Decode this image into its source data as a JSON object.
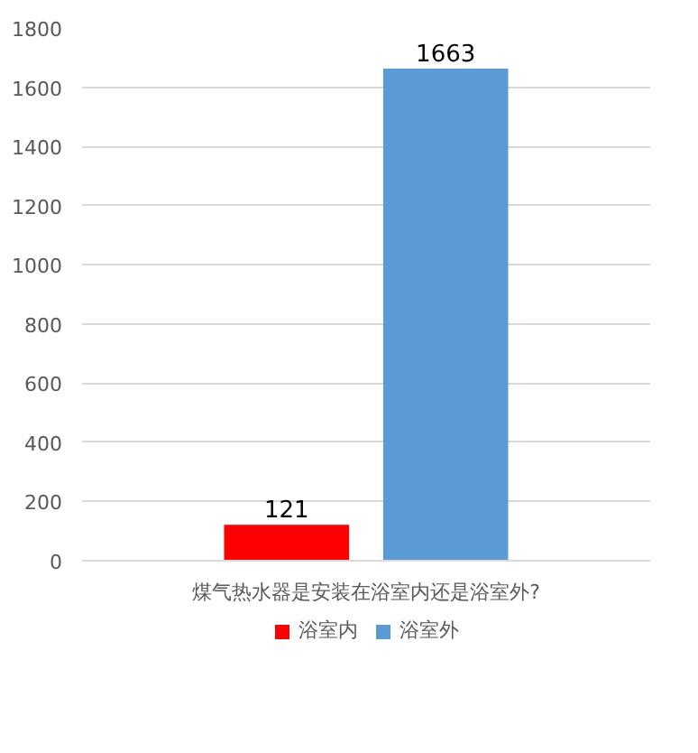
{
  "chart_data": {
    "type": "bar",
    "categories": [
      "煤气热水器是安装在浴室内还是浴室外?"
    ],
    "series": [
      {
        "name": "浴室内",
        "color": "#ff0000",
        "values": [
          121
        ]
      },
      {
        "name": "浴室外",
        "color": "#5b9bd5",
        "values": [
          1663
        ]
      }
    ],
    "ylim": [
      0,
      1800
    ],
    "yticks": [
      0,
      200,
      400,
      600,
      800,
      1000,
      1200,
      1400,
      1600,
      1800
    ],
    "grid": "y",
    "legend": "bottom",
    "data_labels": true
  }
}
